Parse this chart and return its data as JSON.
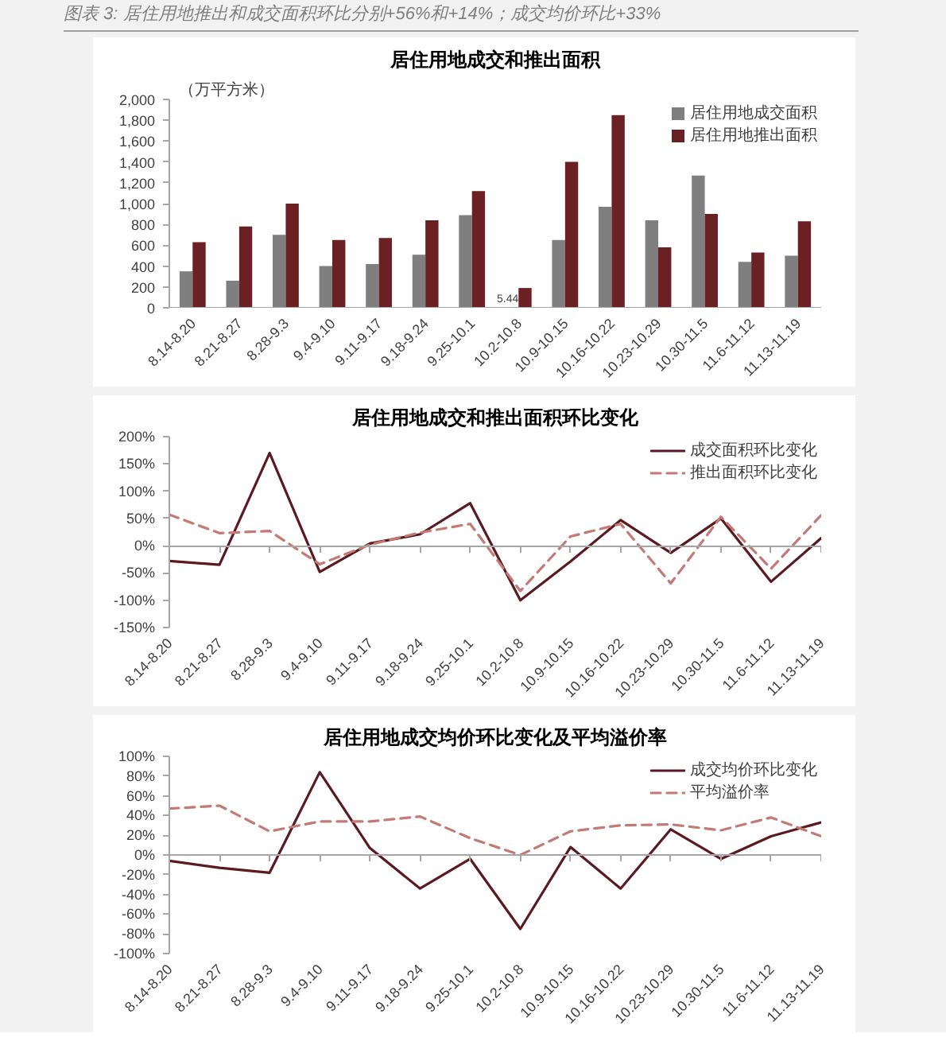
{
  "chart_data": [
    {
      "type": "bar",
      "title": "居住用地成交和推出面积",
      "ylabel": "（万平方米）",
      "annotations": [
        "图表 3: 居住用地推出和成交面积环比分别+56%和+14%；成交均价环比+33%"
      ],
      "categories": [
        "8.14-8.20",
        "8.21-8.27",
        "8.28-9.3",
        "9.4-9.10",
        "9.11-9.17",
        "9.18-9.24",
        "9.25-10.1",
        "10.2-10.8",
        "10.9-10.15",
        "10.16-10.22",
        "10.23-10.29",
        "10.30-11.5",
        "11.6-11.12",
        "11.13-11.19"
      ],
      "series": [
        {
          "name": "居住用地成交面积",
          "color": "#7f7f7f",
          "values": [
            350,
            260,
            700,
            400,
            420,
            510,
            890,
            5.44,
            650,
            970,
            840,
            1270,
            440,
            500
          ],
          "value_labels": [
            null,
            null,
            null,
            null,
            null,
            null,
            null,
            "5.44",
            null,
            null,
            null,
            null,
            null,
            null
          ]
        },
        {
          "name": "居住用地推出面积",
          "color": "#6b2024",
          "values": [
            630,
            780,
            1000,
            650,
            670,
            840,
            1120,
            190,
            1400,
            1850,
            580,
            900,
            530,
            830
          ]
        }
      ],
      "ylim": [
        0,
        2000
      ],
      "yticks": [
        0,
        200,
        400,
        600,
        800,
        {
          "value": 1000,
          "label": "1,000"
        },
        {
          "value": 1200,
          "label": "1,200"
        },
        {
          "value": 1400,
          "label": "1,400"
        },
        {
          "value": 1600,
          "label": "1,600"
        },
        {
          "value": 1800,
          "label": "1,800"
        },
        {
          "value": 2000,
          "label": "2,000"
        }
      ],
      "legend": "top right"
    },
    {
      "type": "line",
      "title": "居住用地成交和推出面积环比变化",
      "categories": [
        "8.14-8.20",
        "8.21-8.27",
        "8.28-9.3",
        "9.4-9.10",
        "9.11-9.17",
        "9.18-9.24",
        "9.25-10.1",
        "10.2-10.8",
        "10.9-10.15",
        "10.16-10.22",
        "10.23-10.29",
        "10.30-11.5",
        "11.6-11.12",
        "11.13-11.19"
      ],
      "series": [
        {
          "name": "成交面积环比变化",
          "color": "#5b1a1f",
          "line_style": "solid",
          "values": [
            -28,
            -35,
            170,
            -48,
            4,
            21,
            78,
            -100,
            -29,
            47,
            -13,
            50,
            -66,
            14
          ]
        },
        {
          "name": "推出面积环比变化",
          "color": "#c47a74",
          "line_style": "dashed",
          "values": [
            57,
            23,
            27,
            -34,
            2,
            24,
            40,
            -83,
            17,
            40,
            -69,
            53,
            -42,
            56
          ]
        }
      ],
      "ylim": [
        -150,
        200
      ],
      "yticks": [
        {
          "value": -150,
          "label": "-150%"
        },
        {
          "value": -100,
          "label": "-100%"
        },
        {
          "value": -50,
          "label": "-50%"
        },
        {
          "value": 0,
          "label": "0%"
        },
        {
          "value": 50,
          "label": "50%"
        },
        {
          "value": 100,
          "label": "100%"
        },
        {
          "value": 150,
          "label": "150%"
        },
        {
          "value": 200,
          "label": "200%"
        }
      ],
      "legend": "top right"
    },
    {
      "type": "line",
      "title": "居住用地成交均价环比变化及平均溢价率",
      "categories": [
        "8.14-8.20",
        "8.21-8.27",
        "8.28-9.3",
        "9.4-9.10",
        "9.11-9.17",
        "9.18-9.24",
        "9.25-10.1",
        "10.2-10.8",
        "10.9-10.15",
        "10.16-10.22",
        "10.23-10.29",
        "10.30-11.5",
        "11.6-11.12",
        "11.13-11.19"
      ],
      "series": [
        {
          "name": "成交均价环比变化",
          "color": "#5b1a1f",
          "line_style": "solid",
          "values": [
            -6,
            -13,
            -18,
            84,
            7,
            -34,
            -4,
            -75,
            8,
            -34,
            26,
            -4,
            19,
            33
          ]
        },
        {
          "name": "平均溢价率",
          "color": "#c47a74",
          "line_style": "dashed",
          "values": [
            47,
            50,
            24,
            34,
            34,
            39,
            17,
            0,
            24,
            30,
            31,
            25,
            38,
            19
          ]
        }
      ],
      "ylim": [
        -100,
        100
      ],
      "yticks": [
        {
          "value": -100,
          "label": "-100%"
        },
        {
          "value": -80,
          "label": "-80%"
        },
        {
          "value": -60,
          "label": "-60%"
        },
        {
          "value": -40,
          "label": "-40%"
        },
        {
          "value": -20,
          "label": "-20%"
        },
        {
          "value": 0,
          "label": "0%"
        },
        {
          "value": 20,
          "label": "20%"
        },
        {
          "value": 40,
          "label": "40%"
        },
        {
          "value": 60,
          "label": "60%"
        },
        {
          "value": 80,
          "label": "80%"
        },
        {
          "value": 100,
          "label": "100%"
        }
      ],
      "legend": "top right"
    }
  ]
}
